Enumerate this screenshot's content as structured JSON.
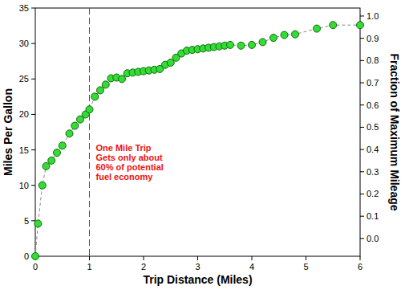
{
  "chart_data": {
    "type": "line",
    "x_label": "Trip Distance (Miles)",
    "y_label": "Miles Per Gallon",
    "y2_label": "Fraction of Maximum Mileage",
    "x": [
      0,
      0.05,
      0.13,
      0.2,
      0.3,
      0.4,
      0.5,
      0.63,
      0.73,
      0.83,
      0.93,
      1.0,
      1.1,
      1.2,
      1.3,
      1.4,
      1.5,
      1.6,
      1.7,
      1.8,
      1.9,
      2.0,
      2.1,
      2.2,
      2.3,
      2.4,
      2.5,
      2.6,
      2.7,
      2.8,
      2.9,
      3.0,
      3.1,
      3.2,
      3.3,
      3.4,
      3.5,
      3.6,
      3.8,
      4.0,
      4.2,
      4.4,
      4.6,
      4.8,
      5.2,
      5.5,
      6.0
    ],
    "values": [
      0,
      4.6,
      10.0,
      12.7,
      13.5,
      14.6,
      15.6,
      17.3,
      18.4,
      19.3,
      20.0,
      20.7,
      22.5,
      23.4,
      24.2,
      25.1,
      25.2,
      25.0,
      25.8,
      25.9,
      26.0,
      26.1,
      26.2,
      26.3,
      26.4,
      27.0,
      27.3,
      28.0,
      28.6,
      29.0,
      29.1,
      29.2,
      29.3,
      29.4,
      29.5,
      29.6,
      29.7,
      29.8,
      29.7,
      29.8,
      30.2,
      30.8,
      31.2,
      31.3,
      32.1,
      32.6,
      32.6
    ],
    "color": "#33dd33",
    "marker": "circle",
    "line_style": "dashed",
    "xlim": [
      0,
      6
    ],
    "xticks": [
      0,
      1,
      2,
      3,
      4,
      5,
      6
    ],
    "ylim": [
      0,
      35
    ],
    "yticks": [
      0,
      5,
      10,
      15,
      20,
      25,
      30,
      35
    ],
    "y2lim": [
      -0.08,
      1.036
    ],
    "y2ticks": [
      {
        "value": 0,
        "label": "0.0"
      },
      {
        "value": 0.1,
        "label": "0.1"
      },
      {
        "value": 0.2,
        "label": "0.2"
      },
      {
        "value": 0.3,
        "label": "0.3"
      },
      {
        "value": 0.4,
        "label": "0.4"
      },
      {
        "value": 0.5,
        "label": "0.5"
      },
      {
        "value": 0.6,
        "label": "0.6"
      },
      {
        "value": 0.7,
        "label": "0.7"
      },
      {
        "value": 0.8,
        "label": "0.8"
      },
      {
        "value": 0.9,
        "label": "0.9"
      },
      {
        "value": 1,
        "label": "1.0"
      }
    ],
    "annotations": [
      {
        "x": 1,
        "text": [
          "One Mile Trip",
          "Gets only about",
          "60% of potential",
          "fuel economy"
        ],
        "color": "#ee1111"
      }
    ]
  }
}
